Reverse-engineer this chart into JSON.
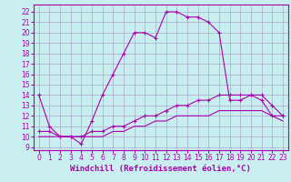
{
  "title": "",
  "xlabel": "Windchill (Refroidissement éolien,°C)",
  "bg_color": "#c8eef0",
  "line_color": "#aa00aa",
  "grid_color": "#aaaacc",
  "x_ticks": [
    0,
    1,
    2,
    3,
    4,
    5,
    6,
    7,
    8,
    9,
    10,
    11,
    12,
    13,
    14,
    15,
    16,
    17,
    18,
    19,
    20,
    21,
    22,
    23
  ],
  "y_ticks": [
    9,
    10,
    11,
    12,
    13,
    14,
    15,
    16,
    17,
    18,
    19,
    20,
    21,
    22
  ],
  "ylim": [
    8.7,
    22.7
  ],
  "xlim": [
    -0.5,
    23.5
  ],
  "line1_x": [
    0,
    1,
    2,
    3,
    4,
    5,
    6,
    7,
    8,
    9,
    10,
    11,
    12,
    13,
    14,
    15,
    16,
    17,
    18,
    19,
    20,
    21,
    22,
    23
  ],
  "line1_y": [
    14,
    11,
    10,
    10,
    9.3,
    11.5,
    14,
    16,
    18,
    20,
    20,
    19.5,
    22,
    22,
    21.5,
    21.5,
    21,
    20,
    13.5,
    13.5,
    14,
    13.5,
    12,
    12
  ],
  "line2_x": [
    0,
    1,
    2,
    3,
    4,
    5,
    6,
    7,
    8,
    9,
    10,
    11,
    12,
    13,
    14,
    15,
    16,
    17,
    18,
    19,
    20,
    21,
    22,
    23
  ],
  "line2_y": [
    10.5,
    10.5,
    10,
    10,
    10,
    10.5,
    10.5,
    11,
    11,
    11.5,
    12,
    12,
    12.5,
    13,
    13,
    13.5,
    13.5,
    14,
    14,
    14,
    14,
    14,
    13,
    12
  ],
  "line3_x": [
    0,
    1,
    2,
    3,
    4,
    5,
    6,
    7,
    8,
    9,
    10,
    11,
    12,
    13,
    14,
    15,
    16,
    17,
    18,
    19,
    20,
    21,
    22,
    23
  ],
  "line3_y": [
    10,
    10,
    10,
    10,
    10,
    10,
    10,
    10.5,
    10.5,
    11,
    11,
    11.5,
    11.5,
    12,
    12,
    12,
    12,
    12.5,
    12.5,
    12.5,
    12.5,
    12.5,
    12,
    11.5
  ],
  "tick_fontsize": 5.5,
  "xlabel_fontsize": 6.5
}
